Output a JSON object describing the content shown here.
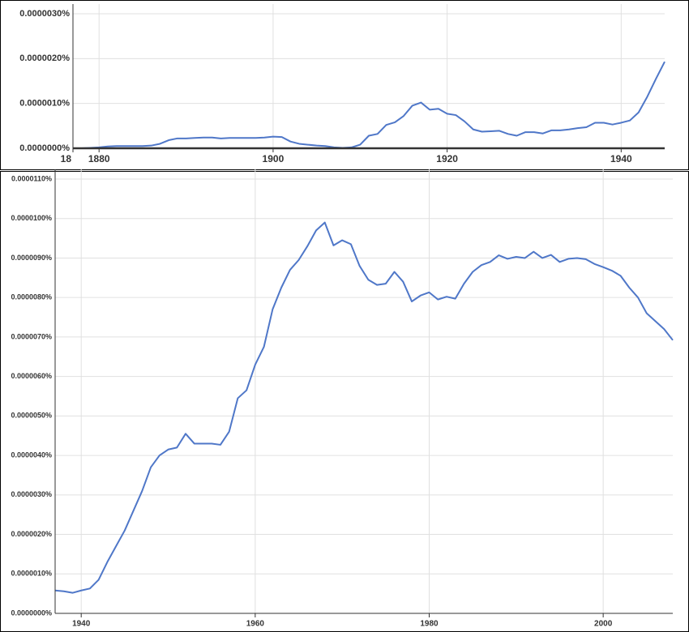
{
  "chart_data": [
    {
      "type": "line",
      "x": [
        1877,
        1878,
        1879,
        1880,
        1881,
        1882,
        1883,
        1884,
        1885,
        1886,
        1887,
        1888,
        1889,
        1890,
        1891,
        1892,
        1893,
        1894,
        1895,
        1896,
        1897,
        1898,
        1899,
        1900,
        1901,
        1902,
        1903,
        1904,
        1905,
        1906,
        1907,
        1908,
        1909,
        1910,
        1911,
        1912,
        1913,
        1914,
        1915,
        1916,
        1917,
        1918,
        1919,
        1920,
        1921,
        1922,
        1923,
        1924,
        1925,
        1926,
        1927,
        1928,
        1929,
        1930,
        1931,
        1932,
        1933,
        1934,
        1935,
        1936,
        1937,
        1938,
        1939,
        1940,
        1941,
        1942,
        1943,
        1944,
        1945
      ],
      "values": [
        0,
        0,
        1e-08,
        2e-08,
        4e-08,
        5e-08,
        5e-08,
        5e-08,
        5e-08,
        6e-08,
        1e-07,
        1.8e-07,
        2.2e-07,
        2.2e-07,
        2.3e-07,
        2.4e-07,
        2.4e-07,
        2.2e-07,
        2.3e-07,
        2.3e-07,
        2.3e-07,
        2.3e-07,
        2.4e-07,
        2.6e-07,
        2.5e-07,
        1.5e-07,
        1e-07,
        8e-08,
        6e-08,
        5e-08,
        2e-08,
        1e-08,
        2e-08,
        8e-08,
        2.8e-07,
        3.2e-07,
        5.2e-07,
        5.8e-07,
        7.2e-07,
        9.5e-07,
        1.02e-06,
        8.6e-07,
        8.8e-07,
        7.7e-07,
        7.4e-07,
        6e-07,
        4.2e-07,
        3.7e-07,
        3.8e-07,
        3.9e-07,
        3.2e-07,
        2.8e-07,
        3.6e-07,
        3.6e-07,
        3.3e-07,
        4e-07,
        4e-07,
        4.2e-07,
        4.5e-07,
        4.7e-07,
        5.7e-07,
        5.7e-07,
        5.3e-07,
        5.7e-07,
        6.2e-07,
        8e-07,
        1.15e-06,
        1.55e-06,
        1.93e-06
      ],
      "color": "#4f77c8",
      "xlim": [
        1877,
        1945
      ],
      "xticks": [
        {
          "value": 1877,
          "label": "18"
        },
        1880,
        1900,
        1920,
        1940
      ],
      "ylim": [
        0,
        3e-06
      ],
      "yticks": [
        {
          "value": 0,
          "label": "0.0000000%"
        },
        {
          "value": 1e-06,
          "label": "0.0000010%"
        },
        {
          "value": 2e-06,
          "label": "0.0000020%"
        },
        {
          "value": 3e-06,
          "label": "0.0000030%"
        }
      ],
      "grid": true
    },
    {
      "type": "line",
      "x": [
        1937,
        1938,
        1939,
        1940,
        1941,
        1942,
        1943,
        1944,
        1945,
        1946,
        1947,
        1948,
        1949,
        1950,
        1951,
        1952,
        1953,
        1954,
        1955,
        1956,
        1957,
        1958,
        1959,
        1960,
        1961,
        1962,
        1963,
        1964,
        1965,
        1966,
        1967,
        1968,
        1969,
        1970,
        1971,
        1972,
        1973,
        1974,
        1975,
        1976,
        1977,
        1978,
        1979,
        1980,
        1981,
        1982,
        1983,
        1984,
        1985,
        1986,
        1987,
        1988,
        1989,
        1990,
        1991,
        1992,
        1993,
        1994,
        1995,
        1996,
        1997,
        1998,
        1999,
        2000,
        2001,
        2002,
        2003,
        2004,
        2005,
        2006,
        2007,
        2008
      ],
      "values": [
        5.8e-07,
        5.6e-07,
        5.2e-07,
        5.8e-07,
        6.3e-07,
        8.5e-07,
        1.3e-06,
        1.7e-06,
        2.1e-06,
        2.6e-06,
        3.1e-06,
        3.7e-06,
        4e-06,
        4.15e-06,
        4.2e-06,
        4.55e-06,
        4.3e-06,
        4.3e-06,
        4.3e-06,
        4.27e-06,
        4.6e-06,
        5.45e-06,
        5.65e-06,
        6.3e-06,
        6.75e-06,
        7.7e-06,
        8.25e-06,
        8.7e-06,
        8.95e-06,
        9.3e-06,
        9.7e-06,
        9.9e-06,
        9.32e-06,
        9.45e-06,
        9.35e-06,
        8.8e-06,
        8.45e-06,
        8.32e-06,
        8.35e-06,
        8.65e-06,
        8.4e-06,
        7.9e-06,
        8.05e-06,
        8.13e-06,
        7.95e-06,
        8.02e-06,
        7.97e-06,
        8.35e-06,
        8.65e-06,
        8.82e-06,
        8.9e-06,
        9.07e-06,
        8.98e-06,
        9.03e-06,
        9e-06,
        9.16e-06,
        9e-06,
        9.08e-06,
        8.9e-06,
        8.98e-06,
        9e-06,
        8.97e-06,
        8.85e-06,
        8.77e-06,
        8.68e-06,
        8.55e-06,
        8.25e-06,
        8e-06,
        7.6e-06,
        7.4e-06,
        7.2e-06,
        6.92e-06
      ],
      "color": "#4f77c8",
      "xlim": [
        1937,
        2008
      ],
      "xticks": [
        1940,
        1960,
        1980,
        2000
      ],
      "ylim": [
        0,
        1.1e-05
      ],
      "yticks": [
        {
          "value": 0,
          "label": "0.0000000%"
        },
        {
          "value": 1e-06,
          "label": "0.0000010%"
        },
        {
          "value": 2e-06,
          "label": "0.0000020%"
        },
        {
          "value": 3e-06,
          "label": "0.0000030%"
        },
        {
          "value": 4e-06,
          "label": "0.0000040%"
        },
        {
          "value": 5e-06,
          "label": "0.0000050%"
        },
        {
          "value": 6e-06,
          "label": "0.0000060%"
        },
        {
          "value": 7e-06,
          "label": "0.0000070%"
        },
        {
          "value": 8e-06,
          "label": "0.0000080%"
        },
        {
          "value": 9e-06,
          "label": "0.0000090%"
        },
        {
          "value": 1e-05,
          "label": "0.0000100%"
        },
        {
          "value": 1.1e-05,
          "label": "0.0000110%"
        }
      ],
      "grid": true
    }
  ]
}
